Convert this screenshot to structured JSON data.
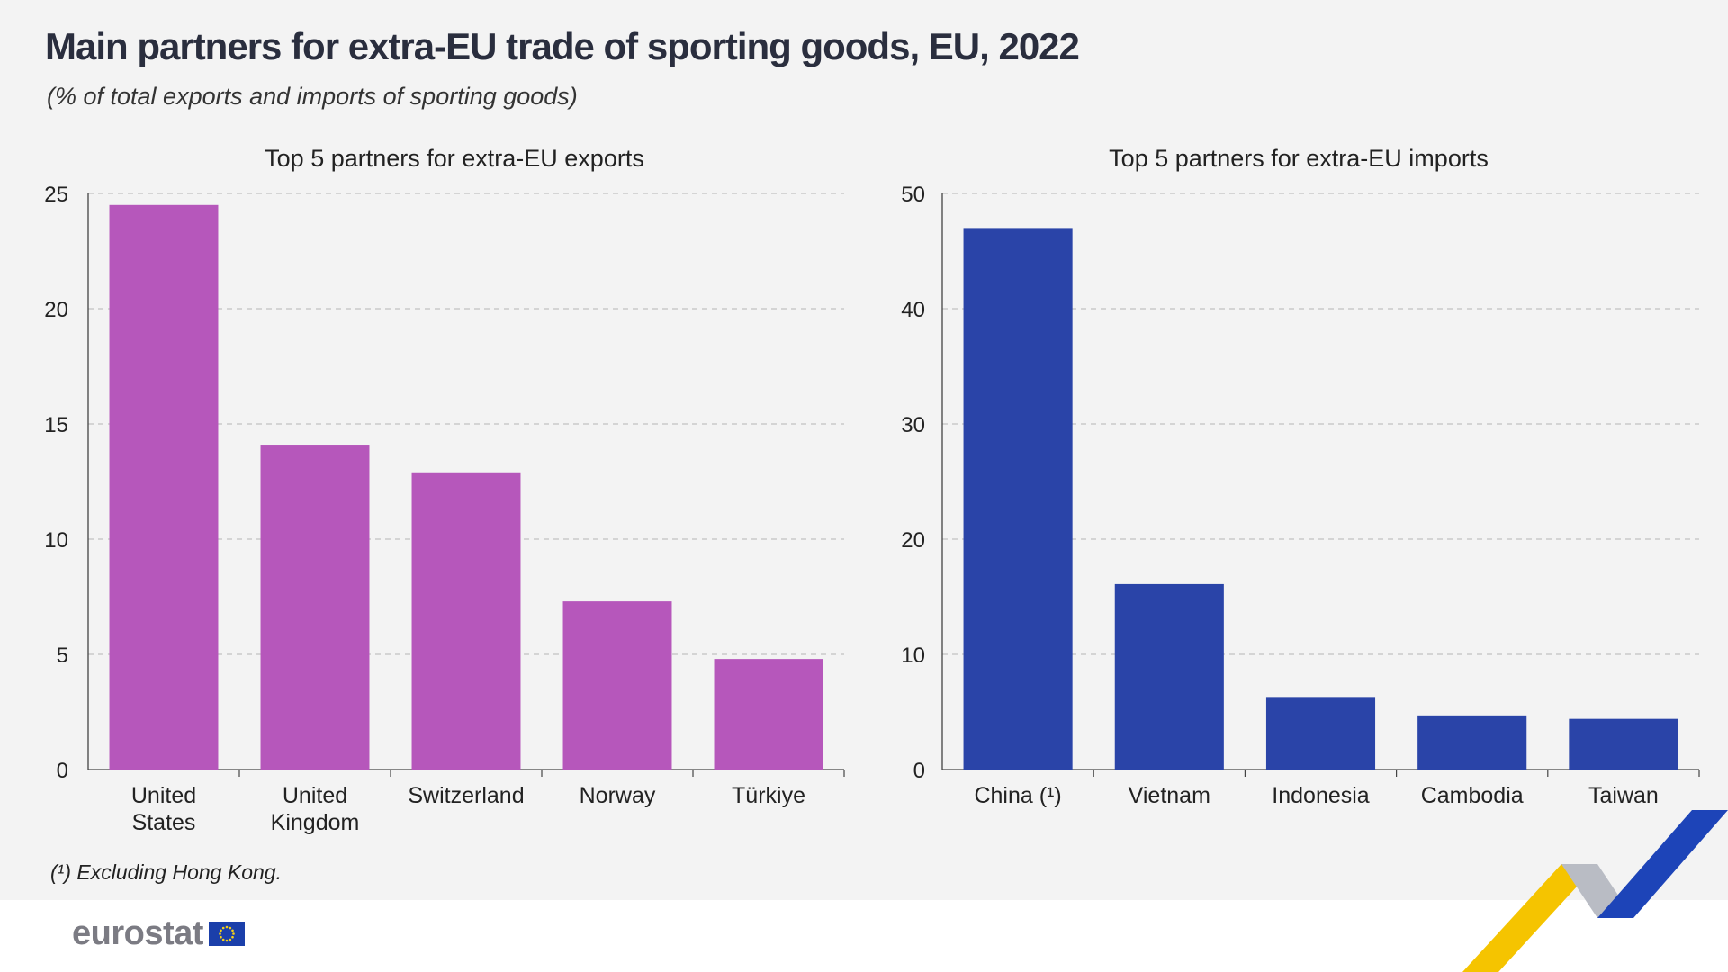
{
  "title": "Main partners for extra-EU trade of sporting goods, EU, 2022",
  "subtitle": "(% of total exports and imports of sporting goods)",
  "footnote": "(¹) Excluding Hong Kong.",
  "logo_text": "eurostat",
  "chart_data": [
    {
      "type": "bar",
      "title": "Top 5 partners for extra-EU exports",
      "categories": [
        "United States",
        "United Kingdom",
        "Switzerland",
        "Norway",
        "Türkiye"
      ],
      "category_lines": [
        [
          "United",
          "States"
        ],
        [
          "United",
          "Kingdom"
        ],
        [
          "Switzerland"
        ],
        [
          "Norway"
        ],
        [
          "Türkiye"
        ]
      ],
      "values": [
        24.5,
        14.1,
        12.9,
        7.3,
        4.8
      ],
      "ylim": [
        0,
        25
      ],
      "yticks": [
        0,
        5,
        10,
        15,
        20,
        25
      ],
      "xlabel": "",
      "ylabel": "",
      "grid": true,
      "color": "#b657bb"
    },
    {
      "type": "bar",
      "title": "Top 5 partners for extra-EU imports",
      "categories": [
        "China (¹)",
        "Vietnam",
        "Indonesia",
        "Cambodia",
        "Taiwan"
      ],
      "category_lines": [
        [
          "China (¹)"
        ],
        [
          "Vietnam"
        ],
        [
          "Indonesia"
        ],
        [
          "Cambodia"
        ],
        [
          "Taiwan"
        ]
      ],
      "values": [
        47.0,
        16.1,
        6.3,
        4.7,
        4.4
      ],
      "ylim": [
        0,
        50
      ],
      "yticks": [
        0,
        10,
        20,
        30,
        40,
        50
      ],
      "xlabel": "",
      "ylabel": "",
      "grid": true,
      "color": "#2a44a8"
    }
  ]
}
